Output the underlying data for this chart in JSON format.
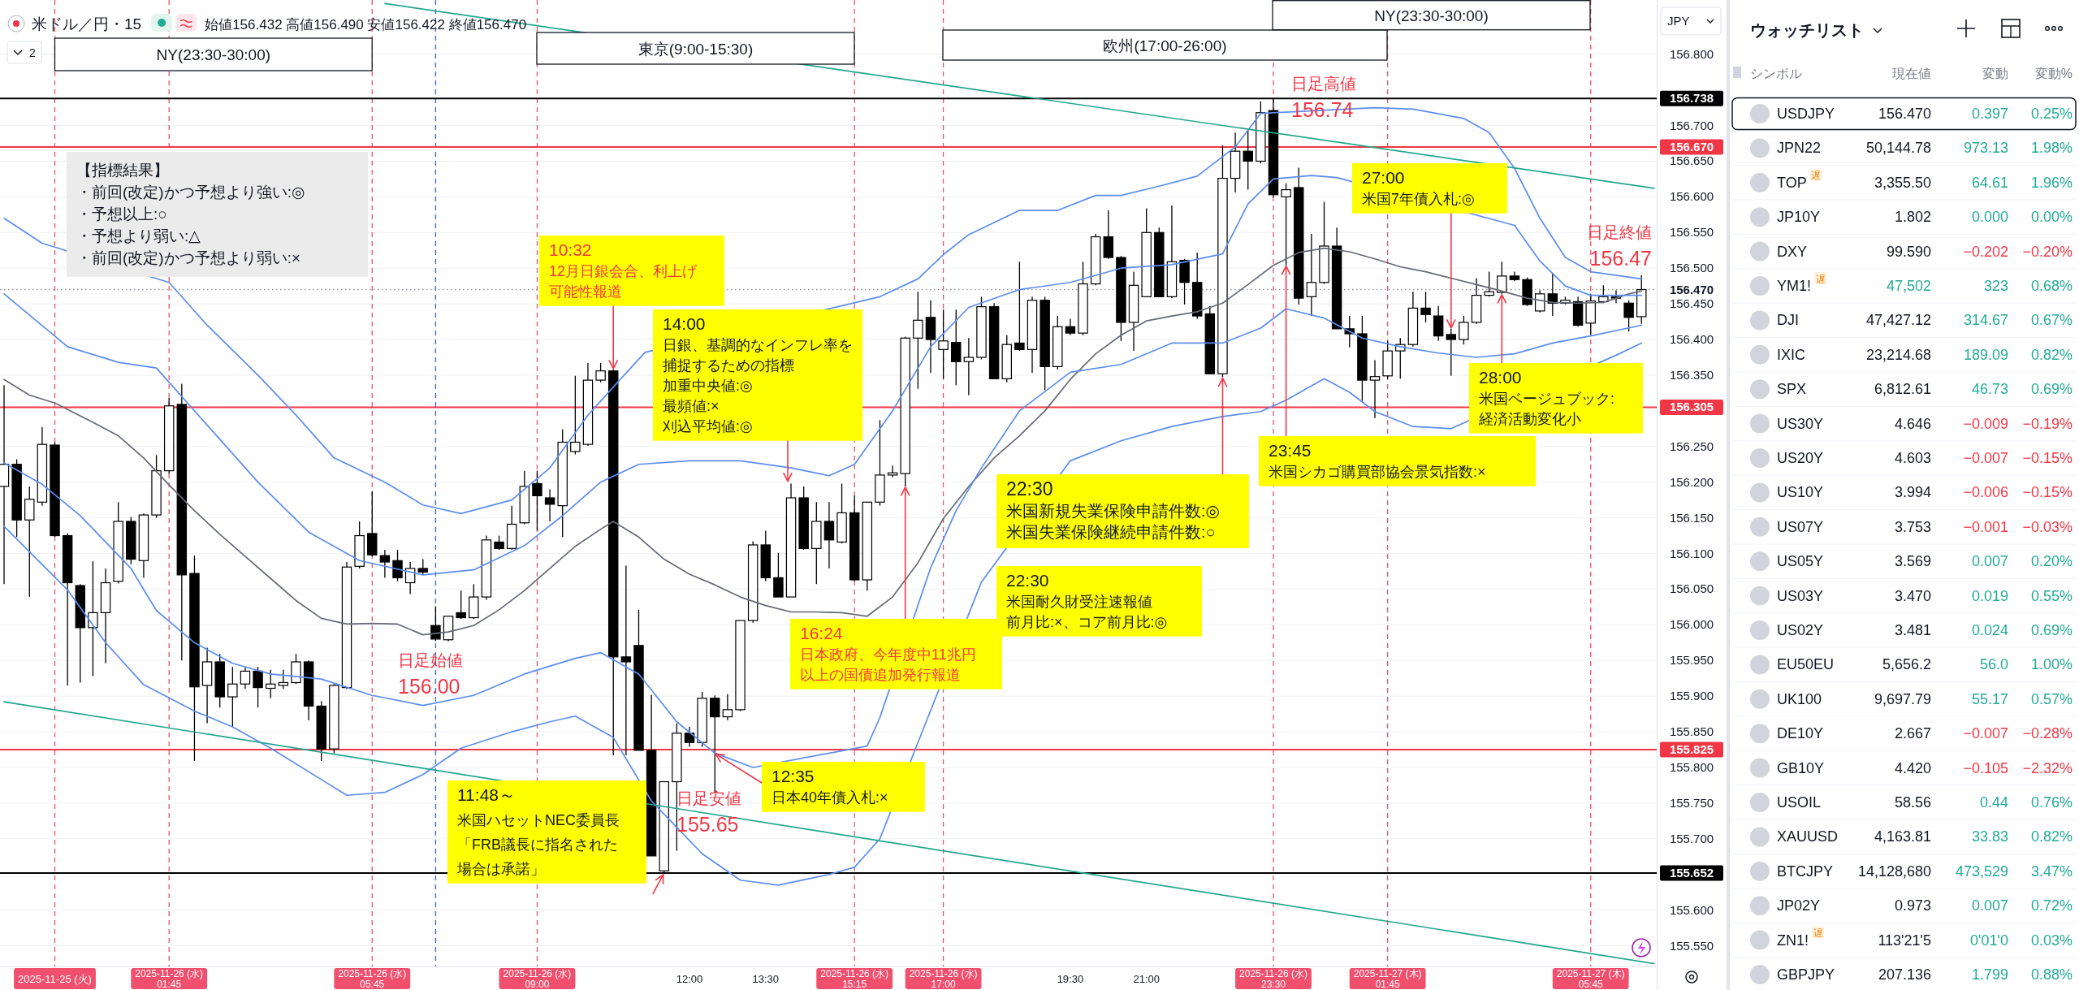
{
  "chart_data": [
    {
      "type": "candlestick",
      "title": "米ドル／円・15",
      "subtitle": "始値156.432 高値156.490 安値156.422 終値156.470",
      "ylabel": "JPY",
      "color": "#000000",
      "grid": "y",
      "xlim": [
        -1.58,
        31.05
      ],
      "ylim": [
        155.521,
        156.876
      ],
      "xticks": [
        {
          "value": -0.5,
          "label": "2025-11-25 (火)"
        },
        {
          "value": 1.75,
          "label": "2025-11-26 (水) 01:45"
        },
        {
          "value": 5.75,
          "label": "2025-11-26 (水) 05:45"
        },
        {
          "value": 9.0,
          "label": "2025-11-26 (水) 09:00"
        },
        {
          "value": 12.0,
          "label": "12:00"
        },
        {
          "value": 13.5,
          "label": "13:30"
        },
        {
          "value": 15.25,
          "label": "2025-11-26 (水) 15:15"
        },
        {
          "value": 17.0,
          "label": "2025-11-26 (水) 17:00"
        },
        {
          "value": 19.5,
          "label": "19:30"
        },
        {
          "value": 21.0,
          "label": "21:00"
        },
        {
          "value": 23.5,
          "label": "2025-11-26 (水) 23:30"
        },
        {
          "value": 25.75,
          "label": "2025-11-27 (木) 01:45"
        },
        {
          "value": 29.75,
          "label": "2025-11-27 (木) 05:45"
        }
      ],
      "yticks": [
        {
          "value": 156.8,
          "label": "156.800"
        },
        {
          "value": 156.7,
          "label": "156.700"
        },
        {
          "value": 156.65,
          "label": "156.650"
        },
        {
          "value": 156.6,
          "label": "156.600"
        },
        {
          "value": 156.55,
          "label": "156.550"
        },
        {
          "value": 156.5,
          "label": "156.500"
        },
        {
          "value": 156.45,
          "label": "156.450"
        },
        {
          "value": 156.4,
          "label": "156.400"
        },
        {
          "value": 156.35,
          "label": "156.350"
        },
        {
          "value": 156.25,
          "label": "156.250"
        },
        {
          "value": 156.2,
          "label": "156.200"
        },
        {
          "value": 156.15,
          "label": "156.150"
        },
        {
          "value": 156.1,
          "label": "156.100"
        },
        {
          "value": 156.05,
          "label": "156.050"
        },
        {
          "value": 156.0,
          "label": "156.000"
        },
        {
          "value": 155.95,
          "label": "155.950"
        },
        {
          "value": 155.9,
          "label": "155.900"
        },
        {
          "value": 155.85,
          "label": "155.850"
        },
        {
          "value": 155.8,
          "label": "155.800"
        },
        {
          "value": 155.75,
          "label": "155.750"
        },
        {
          "value": 155.7,
          "label": "155.700"
        },
        {
          "value": 155.6,
          "label": "155.600"
        },
        {
          "value": 155.55,
          "label": "155.550"
        }
      ],
      "x": [
        -1.5,
        -1.25,
        -1,
        -0.75,
        -0.5,
        -0.25,
        0,
        0.25,
        0.5,
        0.75,
        1,
        1.25,
        1.5,
        1.75,
        2,
        2.25,
        2.5,
        2.75,
        3,
        3.25,
        3.5,
        3.75,
        4,
        4.25,
        4.5,
        4.75,
        5,
        5.25,
        5.5,
        5.75,
        6,
        6.25,
        6.5,
        6.75,
        7,
        7.25,
        7.5,
        7.75,
        8,
        8.25,
        8.5,
        8.75,
        9,
        9.25,
        9.5,
        9.75,
        10,
        10.25,
        10.5,
        10.75,
        11,
        11.25,
        11.5,
        11.75,
        12,
        12.25,
        12.5,
        12.75,
        13,
        13.25,
        13.5,
        13.75,
        14,
        14.25,
        14.5,
        14.75,
        15,
        15.25,
        15.5,
        15.75,
        16,
        16.25,
        16.5,
        16.75,
        17,
        17.25,
        17.5,
        17.75,
        18,
        18.25,
        18.5,
        18.75,
        19,
        19.25,
        19.5,
        19.75,
        20,
        20.25,
        20.5,
        20.75,
        21,
        21.25,
        21.5,
        21.75,
        22,
        22.25,
        22.5,
        22.75,
        23,
        23.25,
        23.5,
        23.75,
        24,
        24.25,
        24.5,
        24.75,
        25,
        25.25,
        25.5,
        25.75,
        26,
        26.25,
        26.5,
        26.75,
        27,
        27.25,
        27.5,
        27.75,
        28,
        28.25,
        28.5,
        28.75,
        29,
        29.25,
        29.5,
        29.75,
        30,
        30.25,
        30.5,
        30.75
      ],
      "ohlc": [
        [
          156.194,
          156.336,
          156.057,
          156.225
        ],
        [
          156.225,
          156.232,
          156.123,
          156.147
        ],
        [
          156.147,
          156.194,
          156.039,
          156.176
        ],
        [
          156.172,
          156.277,
          156.167,
          156.253
        ],
        [
          156.252,
          156.256,
          156.123,
          156.125
        ],
        [
          156.125,
          156.128,
          155.915,
          156.059
        ],
        [
          156.055,
          156.057,
          155.919,
          155.996
        ],
        [
          155.996,
          156.089,
          155.928,
          156.017
        ],
        [
          156.017,
          156.079,
          155.946,
          156.059
        ],
        [
          156.061,
          156.172,
          156.058,
          156.145
        ],
        [
          156.145,
          156.151,
          156.085,
          156.092
        ],
        [
          156.09,
          156.156,
          156.066,
          156.154
        ],
        [
          156.154,
          156.238,
          156.15,
          156.216
        ],
        [
          156.216,
          156.318,
          156.212,
          156.307
        ],
        [
          156.309,
          156.338,
          155.95,
          156.07
        ],
        [
          156.072,
          156.097,
          155.809,
          155.913
        ],
        [
          155.915,
          155.968,
          155.862,
          155.948
        ],
        [
          155.948,
          155.959,
          155.884,
          155.899
        ],
        [
          155.899,
          155.941,
          155.857,
          155.917
        ],
        [
          155.917,
          155.941,
          155.91,
          155.935
        ],
        [
          155.935,
          155.941,
          155.884,
          155.912
        ],
        [
          155.911,
          155.937,
          155.897,
          155.917
        ],
        [
          155.915,
          155.937,
          155.91,
          155.919
        ],
        [
          155.919,
          155.959,
          155.917,
          155.948
        ],
        [
          155.948,
          155.95,
          155.866,
          155.886
        ],
        [
          155.886,
          155.893,
          155.809,
          155.826
        ],
        [
          155.826,
          155.917,
          155.82,
          155.915
        ],
        [
          155.912,
          156.088,
          155.91,
          156.081
        ],
        [
          156.082,
          156.145,
          156.079,
          156.125
        ],
        [
          156.128,
          156.187,
          156.096,
          156.098
        ],
        [
          156.097,
          156.105,
          156.066,
          156.088
        ],
        [
          156.09,
          156.105,
          156.061,
          156.066
        ],
        [
          156.059,
          156.088,
          156.043,
          156.079
        ],
        [
          156.079,
          156.092,
          156.07,
          156.074
        ],
        [
          155.999,
          156.026,
          155.977,
          155.98
        ],
        [
          155.979,
          156.012,
          155.977,
          156.012
        ],
        [
          156.017,
          156.048,
          156.008,
          156.01
        ],
        [
          156.01,
          156.057,
          156.008,
          156.039
        ],
        [
          156.039,
          156.125,
          156.035,
          156.119
        ],
        [
          156.116,
          156.125,
          156.105,
          156.107
        ],
        [
          156.107,
          156.167,
          156.105,
          156.141
        ],
        [
          156.143,
          156.216,
          156.141,
          156.194
        ],
        [
          156.198,
          156.216,
          156.132,
          156.181
        ],
        [
          156.178,
          156.19,
          156.145,
          156.169
        ],
        [
          156.167,
          156.274,
          156.123,
          156.256
        ],
        [
          156.243,
          156.349,
          156.239,
          156.256
        ],
        [
          156.253,
          156.367,
          156.251,
          156.343
        ],
        [
          156.343,
          156.367,
          156.34,
          156.356
        ],
        [
          156.356,
          156.358,
          155.817,
          155.955
        ],
        [
          155.955,
          156.083,
          155.817,
          155.948
        ],
        [
          155.971,
          156.021,
          155.824,
          155.824
        ],
        [
          155.824,
          155.902,
          155.676,
          155.676
        ],
        [
          155.655,
          155.78,
          155.652,
          155.78
        ],
        [
          155.78,
          155.862,
          155.683,
          155.848
        ],
        [
          155.848,
          155.857,
          155.829,
          155.835
        ],
        [
          155.835,
          155.906,
          155.829,
          155.897
        ],
        [
          155.897,
          155.901,
          155.764,
          155.871
        ],
        [
          155.871,
          155.903,
          155.866,
          155.881
        ],
        [
          155.881,
          156.006,
          155.879,
          156.006
        ],
        [
          156.006,
          156.117,
          156.003,
          156.112
        ],
        [
          156.112,
          156.132,
          156.061,
          156.066
        ],
        [
          156.066,
          156.101,
          156.039,
          156.039
        ],
        [
          156.039,
          156.198,
          156.039,
          156.178
        ],
        [
          156.178,
          156.194,
          156.105,
          156.107
        ],
        [
          156.107,
          156.172,
          156.057,
          156.145
        ],
        [
          156.145,
          156.172,
          156.079,
          156.119
        ],
        [
          156.116,
          156.198,
          156.114,
          156.157
        ],
        [
          156.157,
          156.181,
          156.061,
          156.063
        ],
        [
          156.063,
          156.172,
          156.048,
          156.172
        ],
        [
          156.172,
          156.287,
          156.167,
          156.21
        ],
        [
          156.21,
          156.223,
          156.207,
          156.213
        ],
        [
          156.212,
          156.404,
          156.194,
          156.402
        ],
        [
          156.402,
          156.467,
          156.331,
          156.427
        ],
        [
          156.431,
          156.455,
          156.353,
          156.4
        ],
        [
          156.386,
          156.442,
          156.345,
          156.398
        ],
        [
          156.396,
          156.442,
          156.336,
          156.369
        ],
        [
          156.369,
          156.402,
          156.322,
          156.375
        ],
        [
          156.375,
          156.46,
          156.372,
          156.446
        ],
        [
          156.446,
          156.451,
          156.345,
          156.345
        ],
        [
          156.345,
          156.406,
          156.34,
          156.393
        ],
        [
          156.395,
          156.509,
          156.384,
          156.386
        ],
        [
          156.386,
          156.46,
          156.353,
          156.455
        ],
        [
          156.455,
          156.46,
          156.329,
          156.362
        ],
        [
          156.362,
          156.433,
          156.358,
          156.418
        ],
        [
          156.418,
          156.429,
          156.406,
          156.409
        ],
        [
          156.409,
          156.509,
          156.406,
          156.478
        ],
        [
          156.478,
          156.548,
          156.476,
          156.544
        ],
        [
          156.544,
          156.581,
          156.513,
          156.515
        ],
        [
          156.515,
          156.517,
          156.398,
          156.424
        ],
        [
          156.424,
          156.495,
          156.384,
          156.476
        ],
        [
          156.46,
          156.584,
          156.46,
          156.55
        ],
        [
          156.55,
          156.557,
          156.46,
          156.46
        ],
        [
          156.46,
          156.588,
          156.458,
          156.509
        ],
        [
          156.511,
          156.513,
          156.449,
          156.48
        ],
        [
          156.48,
          156.522,
          156.429,
          156.433
        ],
        [
          156.436,
          156.447,
          156.352,
          156.352
        ],
        [
          156.352,
          156.672,
          156.347,
          156.626
        ],
        [
          156.626,
          156.69,
          156.606,
          156.664
        ],
        [
          156.664,
          156.694,
          156.61,
          156.65
        ],
        [
          156.65,
          156.734,
          156.647,
          156.718
        ],
        [
          156.721,
          156.738,
          156.599,
          156.603
        ],
        [
          156.6,
          156.619,
          156.504,
          156.61
        ],
        [
          156.613,
          156.641,
          156.449,
          156.458
        ],
        [
          156.46,
          156.548,
          156.433,
          156.48
        ],
        [
          156.48,
          156.593,
          156.478,
          156.531
        ],
        [
          156.531,
          156.557,
          156.415,
          156.415
        ],
        [
          156.415,
          156.433,
          156.389,
          156.408
        ],
        [
          156.408,
          156.433,
          156.314,
          156.343
        ],
        [
          156.343,
          156.371,
          156.29,
          156.348
        ],
        [
          156.349,
          156.398,
          156.345,
          156.384
        ],
        [
          156.384,
          156.402,
          156.345,
          156.393
        ],
        [
          156.393,
          156.467,
          156.39,
          156.444
        ],
        [
          156.444,
          156.467,
          156.424,
          156.435
        ],
        [
          156.433,
          156.447,
          156.398,
          156.405
        ],
        [
          156.407,
          156.415,
          156.349,
          156.4
        ],
        [
          156.4,
          156.433,
          156.393,
          156.424
        ],
        [
          156.424,
          156.486,
          156.422,
          156.462
        ],
        [
          156.462,
          156.495,
          156.46,
          156.467
        ],
        [
          156.466,
          156.509,
          156.464,
          156.489
        ],
        [
          156.489,
          156.495,
          156.482,
          156.484
        ],
        [
          156.484,
          156.487,
          156.447,
          156.449
        ],
        [
          156.44,
          156.469,
          156.438,
          156.464
        ],
        [
          156.464,
          156.493,
          156.433,
          156.451
        ],
        [
          156.451,
          156.46,
          156.449,
          156.455
        ],
        [
          156.453,
          156.46,
          156.418,
          156.42
        ],
        [
          156.423,
          156.464,
          156.407,
          156.454
        ],
        [
          156.453,
          156.476,
          156.451,
          156.46
        ],
        [
          156.46,
          156.469,
          156.451,
          156.458
        ],
        [
          156.451,
          156.455,
          156.411,
          156.431
        ],
        [
          156.432,
          156.49,
          156.422,
          156.47
        ]
      ],
      "series": [
        {
          "type": "line",
          "color": "#666a73",
          "x": [
            -1.5,
            -1.0,
            -0.5,
            0.25,
            0.75,
            1.25,
            1.75,
            2.25,
            2.75,
            3.25,
            3.75,
            4.25,
            4.75,
            5.25,
            5.75,
            6.25,
            6.75,
            7.25,
            7.75,
            8.25,
            8.75,
            9.25,
            9.75,
            10.25,
            10.5,
            11.0,
            11.5,
            12.0,
            12.5,
            13.0,
            13.5,
            14.0,
            14.5,
            15.0,
            15.5,
            16.0,
            16.5,
            17.0,
            17.5,
            18.0,
            18.5,
            19.0,
            19.5,
            20.0,
            20.5,
            21.0,
            21.5,
            22.0,
            22.5,
            23.0,
            23.5,
            24.0,
            24.5,
            25.0,
            25.5,
            26.0,
            26.5,
            27.0,
            27.5,
            28.0,
            28.5,
            29.0,
            29.5,
            30.0,
            30.5,
            30.75
          ],
          "values": [
            156.344,
            156.322,
            156.311,
            156.284,
            156.265,
            156.234,
            156.196,
            156.16,
            156.127,
            156.096,
            156.065,
            156.034,
            156.009,
            156.001,
            156.002,
            156.001,
            155.986,
            155.99,
            155.999,
            156.021,
            156.048,
            156.079,
            156.11,
            156.134,
            156.145,
            156.123,
            156.092,
            156.071,
            156.056,
            156.039,
            156.027,
            156.018,
            156.018,
            156.017,
            156.012,
            156.039,
            156.087,
            156.149,
            156.194,
            156.234,
            156.265,
            156.3,
            156.344,
            156.38,
            156.406,
            156.426,
            156.433,
            156.439,
            156.451,
            156.477,
            156.504,
            156.522,
            156.528,
            156.523,
            156.513,
            156.502,
            156.495,
            156.486,
            156.477,
            156.468,
            156.458,
            156.452,
            156.451,
            156.452,
            156.464,
            156.468
          ]
        },
        {
          "type": "line",
          "color": "#5b8def",
          "x": [
            -1.5,
            -0.75,
            1.75,
            2.5,
            3.5,
            4.25,
            5.0,
            6.0,
            6.75,
            7.5,
            8.5,
            9.25,
            10.0,
            10.75,
            11.125,
            15.75,
            16.5,
            17.0,
            17.5,
            18.5,
            19.25,
            20.0,
            20.5,
            21.25,
            22.0,
            22.75,
            23.25,
            25.5,
            26.25,
            27.25,
            27.75,
            28.25,
            28.75,
            29.25,
            29.75,
            30.75
          ],
          "values": [
            156.57,
            156.535,
            156.48,
            156.42,
            156.35,
            156.294,
            156.234,
            156.2,
            156.168,
            156.156,
            156.175,
            156.22,
            156.294,
            156.353,
            156.382,
            156.46,
            156.485,
            156.519,
            156.547,
            156.581,
            156.581,
            156.602,
            156.602,
            156.615,
            156.629,
            156.67,
            156.717,
            156.725,
            156.723,
            156.71,
            156.69,
            156.64,
            156.57,
            156.515,
            156.495,
            156.485
          ]
        },
        {
          "type": "line",
          "color": "#5b8def",
          "x": [
            -1.5,
            -0.25,
            0.75,
            1.5,
            2.5,
            3.5,
            4.5,
            5.5,
            6.75,
            7.75,
            8.75,
            9.5,
            10.25,
            11.0,
            12.0,
            13.0,
            14.0,
            14.75,
            15.25,
            16.0,
            16.75,
            17.5,
            18.5,
            19.5,
            20.5,
            21.5,
            22.5,
            23.0,
            23.5,
            24.25,
            24.75,
            28.25,
            28.75,
            29.25,
            29.75,
            30.75
          ],
          "values": [
            156.464,
            156.39,
            156.368,
            156.36,
            156.28,
            156.2,
            156.13,
            156.09,
            156.07,
            156.077,
            156.111,
            156.153,
            156.2,
            156.225,
            156.23,
            156.23,
            156.22,
            156.209,
            156.225,
            156.3,
            156.39,
            156.445,
            156.47,
            156.48,
            156.5,
            156.505,
            156.52,
            156.59,
            156.625,
            156.63,
            156.627,
            156.56,
            156.51,
            156.475,
            156.462,
            156.462
          ]
        },
        {
          "type": "line",
          "color": "#5b8def",
          "x": [
            -1.5,
            -0.75,
            0.0,
            1.0,
            1.5,
            2.25,
            3.0,
            3.75,
            4.75,
            5.75,
            6.75,
            7.75,
            8.75,
            9.75,
            10.25,
            11.0,
            11.75,
            12.5,
            13.25,
            15.5,
            15.75,
            16.75,
            17.25,
            17.75,
            18.5,
            19.5,
            20.5,
            21.5,
            22.5,
            23.25,
            23.75,
            24.5,
            25.25,
            26.0,
            26.75,
            27.5,
            28.25,
            29.0,
            29.75,
            30.75
          ],
          "values": [
            156.227,
            156.197,
            156.153,
            156.079,
            156.02,
            155.975,
            155.946,
            155.931,
            155.924,
            155.901,
            155.887,
            155.901,
            155.931,
            155.953,
            155.961,
            155.931,
            155.864,
            155.82,
            155.8,
            155.83,
            155.87,
            156.08,
            156.16,
            156.22,
            156.3,
            156.354,
            156.365,
            156.395,
            156.395,
            156.416,
            156.443,
            156.43,
            156.402,
            156.39,
            156.381,
            156.375,
            156.38,
            156.395,
            156.405,
            156.42
          ]
        },
        {
          "type": "line",
          "color": "#5b8def",
          "x": [
            -1.5,
            -0.25,
            0.5,
            1.25,
            2.25,
            3.0,
            3.75,
            4.75,
            5.25,
            6.0,
            6.75,
            7.5,
            8.5,
            9.25,
            9.75,
            10.5,
            11.25,
            12.25,
            13.0,
            13.75,
            14.75,
            15.25,
            15.75,
            16.75,
            17.75,
            19.5,
            20.5,
            21.5,
            22.5,
            23.25,
            23.75,
            24.5,
            25.0,
            25.5,
            26.25,
            27.0,
            30.25,
            30.75
          ],
          "values": [
            156.138,
            156.049,
            155.975,
            155.916,
            155.879,
            155.857,
            155.827,
            155.783,
            155.761,
            155.765,
            155.79,
            155.827,
            155.85,
            155.864,
            155.872,
            155.842,
            155.753,
            155.679,
            155.642,
            155.635,
            155.65,
            155.66,
            155.7,
            155.88,
            156.06,
            156.23,
            156.258,
            156.278,
            156.292,
            156.299,
            156.315,
            156.345,
            156.326,
            156.299,
            156.278,
            156.275,
            156.378,
            156.395
          ]
        },
        {
          "type": "line",
          "color": "#22a68f",
          "x": [
            6.0,
            31.0
          ],
          "values": [
            156.871,
            156.612
          ]
        },
        {
          "type": "line",
          "color": "#22a68f",
          "x": [
            -1.5,
            31.0
          ],
          "values": [
            155.892,
            155.525
          ]
        }
      ],
      "ref_lines": [
        {
          "axis": "x",
          "value": -0.5,
          "color": "#f0506e",
          "line_style": "dashed"
        },
        {
          "axis": "x",
          "value": 1.75,
          "color": "#f0506e",
          "line_style": "dashed"
        },
        {
          "axis": "x",
          "value": 5.75,
          "color": "#f0506e",
          "line_style": "dashed"
        },
        {
          "axis": "x",
          "value": 7.0,
          "color": "#2962ff",
          "line_style": "dashed"
        },
        {
          "axis": "x",
          "value": 9.0,
          "color": "#f0506e",
          "line_style": "dashed"
        },
        {
          "axis": "x",
          "value": 15.25,
          "color": "#f0506e",
          "line_style": "dashed"
        },
        {
          "axis": "x",
          "value": 17.0,
          "color": "#f0506e",
          "line_style": "dashed"
        },
        {
          "axis": "x",
          "value": 23.5,
          "color": "#f0506e",
          "line_style": "dashed"
        },
        {
          "axis": "x",
          "value": 25.75,
          "color": "#f0506e",
          "line_style": "dashed"
        },
        {
          "axis": "x",
          "value": 29.75,
          "color": "#f0506e",
          "line_style": "dashed"
        },
        {
          "axis": "y",
          "value": 156.738,
          "label": "156.738",
          "color": "#000000",
          "line_style": "solid"
        },
        {
          "axis": "y",
          "value": 156.67,
          "label": "156.670",
          "color": "#f23645",
          "line_style": "solid"
        },
        {
          "axis": "y",
          "value": 156.305,
          "label": "156.305",
          "color": "#f23645",
          "line_style": "solid"
        },
        {
          "axis": "y",
          "value": 155.825,
          "label": "155.825",
          "color": "#f23645",
          "line_style": "solid"
        },
        {
          "axis": "y",
          "value": 155.652,
          "label": "155.652",
          "color": "#000000",
          "line_style": "solid"
        },
        {
          "axis": "y",
          "value": 156.47,
          "label": "156.470",
          "color": "#9598a1",
          "line_style": "dotted"
        }
      ],
      "annotations": [
        "2",
        "NY(23:30-30:00)",
        "東京(9:00-15:30)",
        "欧州(17:00-26:00)",
        "NY(23:30-30:00)",
        "【指標結果】",
        "・前回(改定)かつ予想より強い:◎",
        "・予想以上:○",
        "・予想より弱い:△",
        "・前回(改定)かつ予想より弱い:×",
        {
          "text": "10:32\n12月日銀会合、利上げ可能性報道",
          "x": 10.5,
          "y": 156.358
        },
        "14:00\n日銀、基調的なインフレ率を捕捉するための指標",
        "加重中央値:◎",
        "最頻値:×",
        "刈込平均値:◎",
        {
          "text": "日足始値\n156.00",
          "x": 7.0,
          "y": 156.0
        },
        {
          "text": "16:24\n日本政府、今年度中11兆円以上の国債追加発行報道",
          "x": 16.25,
          "y": 156.194
        },
        {
          "text": "12:35\n日本40年債入札:×",
          "x": 12.5,
          "y": 155.82
        },
        "11:48～",
        "米国ハセットNEC委員長",
        "「FRB議長に指名された場合は承諾」",
        {
          "text": "日足安値\n155.65",
          "x": 11.5,
          "y": 155.652
        },
        {
          "text": "22:30\n米国新規失業保険申請件数:◎",
          "x": 22.5,
          "y": 156.347
        },
        "米国失業保険継続申請件数:○",
        "22:30\n米国耐久財受注速報値",
        "前月比:×、コア前月比:◎",
        {
          "text": "日足高値\n156.74",
          "x": 23.5,
          "y": 156.738
        },
        {
          "text": "23:45\n米国シカゴ購買部協会景気指数:×",
          "x": 23.75,
          "y": 156.504
        },
        {
          "text": "27:00\n米国7年債入札:◎",
          "x": 27.0,
          "y": 156.415
        },
        {
          "text": "28:00\n米国ベージュブック:経済活動変化小",
          "x": 28.0,
          "y": 156.464
        },
        {
          "text": "日足終値\n156.47",
          "x": 30.75,
          "y": 156.47
        }
      ]
    },
    {
      "type": "other",
      "title": "ウォッチリスト",
      "ylabel": "シンボル",
      "categories": [
        "USDJPY",
        "JPN22",
        "TOP",
        "JP10Y",
        "DXY",
        "YM1!",
        "DJI",
        "IXIC",
        "SPX",
        "US30Y",
        "US20Y",
        "US10Y",
        "US07Y",
        "US05Y",
        "US03Y",
        "US02Y",
        "EU50EU",
        "UK100",
        "DE10Y",
        "GB10Y",
        "USOIL",
        "XAUUSD",
        "BTCJPY",
        "JP02Y",
        "ZN1!",
        "GBPJPY"
      ],
      "series": [
        {
          "name": "現在値",
          "values": [
            156.47,
            50144.78,
            3355.5,
            1.802,
            99.59,
            47502,
            47427.12,
            23214.68,
            6812.61,
            4.646,
            4.603,
            3.994,
            3.753,
            3.569,
            3.47,
            3.481,
            5656.2,
            9697.79,
            2.667,
            4.42,
            58.56,
            4163.81,
            14128680,
            0.973,
            null,
            207.136
          ],
          "value_labels": [
            "156.470",
            "50,144.78",
            "3,355.50",
            "1.802",
            "99.590",
            "47,502",
            "47,427.12",
            "23,214.68",
            "6,812.61",
            "4.646",
            "4.603",
            "3.994",
            "3.753",
            "3.569",
            "3.470",
            "3.481",
            "5,656.2",
            "9,697.79",
            "2.667",
            "4.420",
            "58.56",
            "4,163.81",
            "14,128,680",
            "0.973",
            "113'21'5",
            "207.136"
          ],
          "colors": [
            "#131722",
            "#131722",
            "#131722",
            "#131722",
            "#131722",
            "#22ab94",
            "#131722",
            "#131722",
            "#131722",
            "#131722",
            "#131722",
            "#131722",
            "#131722",
            "#131722",
            "#131722",
            "#131722",
            "#131722",
            "#131722",
            "#131722",
            "#131722",
            "#131722",
            "#131722",
            "#131722",
            "#131722",
            "#131722",
            "#131722"
          ]
        },
        {
          "name": "変動",
          "values": [
            0.397,
            973.13,
            64.61,
            0,
            -0.202,
            323,
            314.67,
            189.09,
            46.73,
            -0.009,
            -0.007,
            -0.006,
            -0.001,
            0.007,
            0.019,
            0.024,
            56.0,
            55.17,
            -0.007,
            -0.105,
            0.44,
            33.83,
            473529,
            0.007,
            null,
            1.799
          ],
          "value_labels": [
            "0.397",
            "973.13",
            "64.61",
            "0.000",
            "−0.202",
            "323",
            "314.67",
            "189.09",
            "46.73",
            "−0.009",
            "−0.007",
            "−0.006",
            "−0.001",
            "0.007",
            "0.019",
            "0.024",
            "56.0",
            "55.17",
            "−0.007",
            "−0.105",
            "0.44",
            "33.83",
            "473,529",
            "0.007",
            "0'01'0",
            "1.799"
          ],
          "colors": [
            "#22ab94",
            "#22ab94",
            "#22ab94",
            "#22ab94",
            "#f23645",
            "#22ab94",
            "#22ab94",
            "#22ab94",
            "#22ab94",
            "#f23645",
            "#f23645",
            "#f23645",
            "#f23645",
            "#22ab94",
            "#22ab94",
            "#22ab94",
            "#22ab94",
            "#22ab94",
            "#f23645",
            "#f23645",
            "#22ab94",
            "#22ab94",
            "#22ab94",
            "#22ab94",
            "#22ab94",
            "#22ab94"
          ]
        },
        {
          "name": "変動%",
          "values": [
            0.25,
            1.98,
            1.96,
            0.0,
            -0.2,
            0.68,
            0.67,
            0.82,
            0.69,
            -0.19,
            -0.15,
            -0.15,
            -0.03,
            0.2,
            0.55,
            0.69,
            1.0,
            0.57,
            -0.28,
            -2.32,
            0.76,
            0.82,
            3.47,
            0.72,
            0.03,
            0.88
          ],
          "value_labels": [
            "0.25%",
            "1.98%",
            "1.96%",
            "0.00%",
            "−0.20%",
            "0.68%",
            "0.67%",
            "0.82%",
            "0.69%",
            "−0.19%",
            "−0.15%",
            "−0.15%",
            "−0.03%",
            "0.20%",
            "0.55%",
            "0.69%",
            "1.00%",
            "0.57%",
            "−0.28%",
            "−2.32%",
            "0.76%",
            "0.82%",
            "3.47%",
            "0.72%",
            "0.03%",
            "0.88%"
          ],
          "colors": [
            "#22ab94",
            "#22ab94",
            "#22ab94",
            "#22ab94",
            "#f23645",
            "#22ab94",
            "#22ab94",
            "#22ab94",
            "#22ab94",
            "#f23645",
            "#f23645",
            "#f23645",
            "#f23645",
            "#22ab94",
            "#22ab94",
            "#22ab94",
            "#22ab94",
            "#22ab94",
            "#f23645",
            "#f23645",
            "#22ab94",
            "#22ab94",
            "#22ab94",
            "#22ab94",
            "#22ab94",
            "#22ab94"
          ]
        }
      ],
      "annotations": [
        {
          "text": "遅",
          "y": "TOP"
        },
        {
          "text": "遅",
          "y": "YM1!"
        },
        {
          "text": "遅",
          "y": "ZN1!"
        }
      ]
    }
  ]
}
